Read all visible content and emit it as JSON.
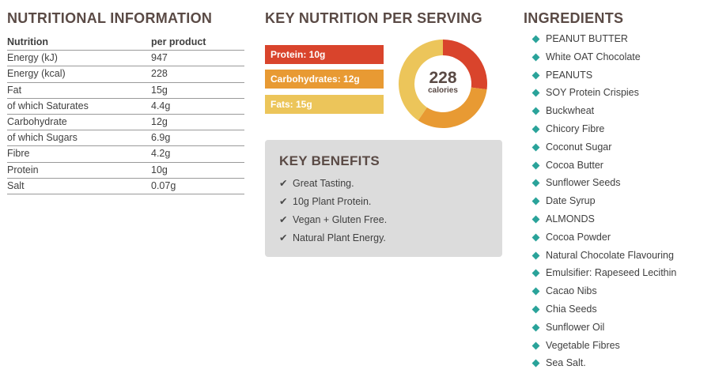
{
  "nutrition": {
    "title": "NUTRITIONAL INFORMATION",
    "header": [
      "Nutrition",
      "per product"
    ],
    "rows": [
      [
        "Energy (kJ)",
        "947"
      ],
      [
        "Energy (kcal)",
        "228"
      ],
      [
        "Fat",
        "15g"
      ],
      [
        "of which Saturates",
        "4.4g"
      ],
      [
        "Carbohydrate",
        "12g"
      ],
      [
        "of which Sugars",
        "6.9g"
      ],
      [
        "Fibre",
        "4.2g"
      ],
      [
        "Protein",
        "10g"
      ],
      [
        "Salt",
        "0.07g"
      ]
    ]
  },
  "key_nutrition": {
    "title": "KEY NUTRITION PER SERVING",
    "bars": [
      {
        "label": "Protein: 10g",
        "color": "#d9442c"
      },
      {
        "label": "Carbohydrates: 12g",
        "color": "#e89a33"
      },
      {
        "label": "Fats: 15g",
        "color": "#ecc55a"
      }
    ],
    "calories_value": "228",
    "calories_unit": "calories"
  },
  "chart_data": {
    "type": "pie",
    "categories": [
      "Protein",
      "Carbohydrates",
      "Fats"
    ],
    "values": [
      10,
      12,
      15
    ],
    "colors": [
      "#d9442c",
      "#e89a33",
      "#ecc55a"
    ],
    "title": "",
    "center_label": "228 calories"
  },
  "benefits": {
    "title": "KEY BENEFITS",
    "items": [
      "Great Tasting.",
      "10g Plant Protein.",
      "Vegan + Gluten Free.",
      "Natural Plant Energy."
    ]
  },
  "ingredients": {
    "title": "INGREDIENTS",
    "items": [
      "PEANUT BUTTER",
      "White OAT Chocolate",
      "PEANUTS",
      "SOY Protein Crispies",
      "Buckwheat",
      "Chicory Fibre",
      "Coconut Sugar",
      "Cocoa Butter",
      "Sunflower Seeds",
      "Date Syrup",
      "ALMONDS",
      "Cocoa Powder",
      "Natural Chocolate Flavouring",
      "Emulsifier: Rapeseed Lecithin",
      "Cacao Nibs",
      "Chia Seeds",
      "Sunflower Oil",
      "Vegetable Fibres",
      "Sea Salt."
    ],
    "bullet_color": "#2aa39a"
  }
}
